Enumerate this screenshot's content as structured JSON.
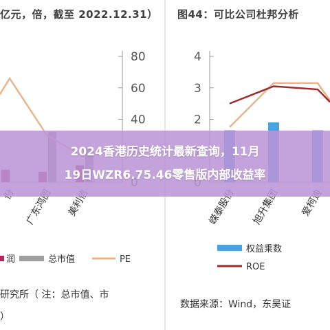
{
  "overlay": {
    "line1": "2024香港历史统计最新查询，11月",
    "line2": "19日WZR6.75.46零售版内部收益率"
  },
  "left_panel": {
    "title": "亿元，倍，截至 2022.12.31）",
    "source_line1": "研究所（ 注：总市值、市",
    "source_line2": "）",
    "legend": [
      "润",
      "总市值",
      "PE"
    ]
  },
  "right_panel": {
    "title": "图44：可比公司杜邦分析",
    "source": "数据来源：Wind，东吴证",
    "legend": [
      "权益乘数",
      "ROE"
    ]
  },
  "colors": {
    "bar_profit": "#b2285c",
    "bar_marketcap": "#9e9e9e",
    "pe_line": "#e8b48a",
    "bar_equity": "#4aa3df",
    "roe_line": "#a12b2b",
    "overlay": "#ba94d6"
  },
  "chart_data": [
    {
      "type": "bar",
      "title": "亿元，倍，截至 2022.12.31）",
      "categories": [
        "份",
        "广东鸿图",
        "美利信"
      ],
      "series": [
        {
          "name": "润",
          "kind": "bar",
          "values": [
            3,
            2.5,
            4
          ]
        },
        {
          "name": "总市值",
          "kind": "bar",
          "values": [
            null,
            12,
            8
          ]
        },
        {
          "name": "PE",
          "kind": "line",
          "values": [
            66,
            30,
            16
          ]
        }
      ],
      "right_axis": {
        "ticks": [
          0,
          20,
          40,
          60,
          80
        ],
        "ylim": [
          0,
          80
        ]
      },
      "legend": "bottom"
    },
    {
      "type": "bar",
      "title": "图44：可比公司杜邦分析",
      "categories": [
        "嵘泰股份",
        "旭升集团",
        "爱柯迪"
      ],
      "series": [
        {
          "name": "权益乘数",
          "kind": "bar",
          "values": [
            1.65,
            1.9,
            1.65
          ]
        },
        {
          "name": "ROE",
          "kind": "line",
          "values": [
            2.5,
            3.05,
            2.95
          ]
        },
        {
          "name": "",
          "kind": "line",
          "values": [
            1.75,
            3.15,
            3.15
          ]
        }
      ],
      "left_axis": {
        "ticks": [
          0,
          1,
          2,
          3,
          4
        ],
        "ylim": [
          0,
          4
        ]
      },
      "legend": "bottom"
    }
  ]
}
